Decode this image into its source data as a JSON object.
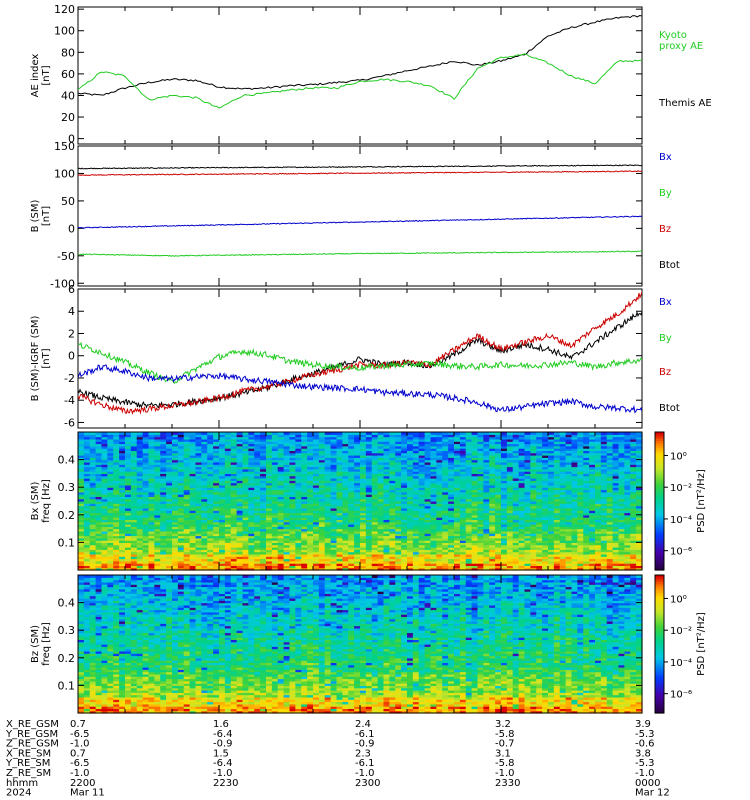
{
  "panels": [
    {
      "id": "ae",
      "ylabel_lines": [
        "AE index",
        "[nT]"
      ],
      "ylim": [
        -5,
        122
      ],
      "ticks": [
        0,
        20,
        40,
        60,
        80,
        100,
        120
      ],
      "tick_labels": [
        "0",
        "20",
        "40",
        "60",
        "80",
        "100",
        "120"
      ],
      "legend": [
        {
          "label": "Kyoto",
          "color": "#22cc22"
        },
        {
          "label": "proxy AE",
          "color": "#22cc22"
        },
        {
          "label": "Themis AE",
          "color": "#000000"
        }
      ]
    },
    {
      "id": "b",
      "ylabel_lines": [
        "B (SM)",
        "[nT]"
      ],
      "ylim": [
        -105,
        150
      ],
      "ticks": [
        -100,
        -50,
        0,
        50,
        100,
        150
      ],
      "tick_labels": [
        "-100",
        "-50",
        "0",
        "50",
        "100",
        "150"
      ],
      "legend": [
        {
          "label": "Bx",
          "color": "#0000cc"
        },
        {
          "label": "By",
          "color": "#22cc22"
        },
        {
          "label": "Bz",
          "color": "#cc0000"
        },
        {
          "label": "Btot",
          "color": "#000000"
        }
      ]
    },
    {
      "id": "dib",
      "ylabel_lines": [
        "B (SM)-IGRF (SM)",
        "[nT]"
      ],
      "ylim": [
        -6.5,
        6
      ],
      "ticks": [
        -6,
        -4,
        -2,
        0,
        2,
        4,
        6
      ],
      "tick_labels": [
        "-6",
        "-4",
        "-2",
        "0",
        "2",
        "4",
        "6"
      ],
      "legend": [
        {
          "label": "Bx",
          "color": "#0000cc"
        },
        {
          "label": "By",
          "color": "#22cc22"
        },
        {
          "label": "Bz",
          "color": "#cc0000"
        },
        {
          "label": "Btot",
          "color": "#000000"
        }
      ]
    },
    {
      "id": "bxspec",
      "ylabel_lines": [
        "Bx (SM)",
        "freq [Hz]"
      ],
      "ylim": [
        0,
        0.5
      ],
      "ticks": [
        0.1,
        0.2,
        0.3,
        0.4
      ],
      "tick_labels": [
        "0.1",
        "0.2",
        "0.3",
        "0.4"
      ],
      "colorbar_label": "PSD [nT²/Hz]",
      "colorbar_ticks": [
        "10⁰",
        "10⁻²",
        "10⁻⁴",
        "10⁻⁶"
      ]
    },
    {
      "id": "bzspec",
      "ylabel_lines": [
        "Bz (SM)",
        "freq [Hz]"
      ],
      "ylim": [
        0,
        0.5
      ],
      "ticks": [
        0.1,
        0.2,
        0.3,
        0.4
      ],
      "tick_labels": [
        "0.1",
        "0.2",
        "0.3",
        "0.4"
      ],
      "colorbar_label": "PSD [nT²/Hz]",
      "colorbar_ticks": [
        "10⁰",
        "10⁻²",
        "10⁻⁴",
        "10⁻⁶"
      ]
    }
  ],
  "chart_data": [
    {
      "type": "line",
      "xlim_minutes": [
        0,
        120
      ],
      "series": [
        {
          "name": "Themis AE",
          "color": "#000000",
          "x": [
            0,
            5,
            10,
            15,
            20,
            25,
            30,
            35,
            40,
            45,
            50,
            55,
            60,
            65,
            70,
            75,
            80,
            85,
            90,
            95,
            100,
            105,
            110,
            115,
            120
          ],
          "y": [
            42,
            40,
            47,
            52,
            55,
            54,
            48,
            46,
            47,
            49,
            50,
            52,
            54,
            58,
            63,
            67,
            72,
            68,
            72,
            78,
            95,
            103,
            108,
            112,
            114
          ]
        },
        {
          "name": "Kyoto proxy AE",
          "color": "#22cc22",
          "x": [
            0,
            5,
            10,
            15,
            20,
            25,
            30,
            35,
            40,
            45,
            50,
            55,
            60,
            65,
            70,
            75,
            80,
            85,
            90,
            95,
            100,
            105,
            110,
            115,
            120
          ],
          "y": [
            45,
            62,
            58,
            36,
            40,
            38,
            28,
            40,
            42,
            45,
            47,
            47,
            53,
            55,
            53,
            49,
            37,
            65,
            75,
            78,
            70,
            58,
            51,
            72,
            72
          ]
        }
      ]
    },
    {
      "type": "line",
      "xlim_minutes": [
        0,
        120
      ],
      "series": [
        {
          "name": "Btot",
          "color": "#000000",
          "x": [
            0,
            120
          ],
          "y": [
            109,
            115
          ]
        },
        {
          "name": "Bz",
          "color": "#cc0000",
          "x": [
            0,
            120
          ],
          "y": [
            97,
            104
          ]
        },
        {
          "name": "Bx",
          "color": "#0000cc",
          "x": [
            0,
            120
          ],
          "y": [
            1,
            22
          ]
        },
        {
          "name": "By",
          "color": "#22cc22",
          "x": [
            0,
            20,
            60,
            120
          ],
          "y": [
            -47,
            -50,
            -46,
            -42
          ]
        }
      ]
    },
    {
      "type": "line",
      "xlim_minutes": [
        0,
        120
      ],
      "series": [
        {
          "name": "Btot",
          "color": "#000000",
          "x": [
            0,
            5,
            10,
            15,
            20,
            25,
            30,
            35,
            40,
            45,
            50,
            55,
            60,
            65,
            70,
            75,
            80,
            85,
            90,
            95,
            100,
            105,
            110,
            115,
            120
          ],
          "y": [
            -3.2,
            -3.8,
            -4.2,
            -4.5,
            -4.4,
            -4.1,
            -3.8,
            -3.4,
            -2.9,
            -2.2,
            -1.6,
            -1.0,
            -0.3,
            -0.8,
            -0.6,
            -0.9,
            0.1,
            1.4,
            0.4,
            1.0,
            0.6,
            -0.2,
            1.2,
            2.6,
            4.0
          ]
        },
        {
          "name": "Bz",
          "color": "#cc0000",
          "x": [
            0,
            5,
            10,
            15,
            20,
            25,
            30,
            35,
            40,
            45,
            50,
            55,
            60,
            65,
            70,
            75,
            80,
            85,
            90,
            95,
            100,
            105,
            110,
            115,
            120
          ],
          "y": [
            -3.6,
            -4.4,
            -5.0,
            -4.8,
            -4.5,
            -4.2,
            -3.8,
            -3.2,
            -2.8,
            -2.3,
            -1.7,
            -1.3,
            -0.8,
            -0.9,
            -0.6,
            -0.8,
            0.5,
            1.8,
            0.6,
            1.2,
            1.8,
            0.9,
            2.5,
            3.8,
            5.6
          ]
        },
        {
          "name": "By",
          "color": "#22cc22",
          "x": [
            0,
            5,
            10,
            15,
            20,
            25,
            30,
            35,
            40,
            45,
            50,
            55,
            60,
            65,
            70,
            75,
            80,
            85,
            90,
            95,
            100,
            105,
            110,
            115,
            120
          ],
          "y": [
            1.0,
            0.3,
            -0.6,
            -1.5,
            -2.4,
            -1.2,
            -0.1,
            0.4,
            0.1,
            -0.5,
            -0.8,
            -1.0,
            -1.1,
            -0.9,
            -0.8,
            -0.7,
            -0.9,
            -1.0,
            -0.8,
            -0.9,
            -0.8,
            -0.6,
            -1.0,
            -0.6,
            -0.4
          ]
        },
        {
          "name": "Bx",
          "color": "#0000cc",
          "x": [
            0,
            5,
            10,
            15,
            20,
            25,
            30,
            35,
            40,
            45,
            50,
            55,
            60,
            65,
            70,
            75,
            80,
            85,
            90,
            95,
            100,
            105,
            110,
            115,
            120
          ],
          "y": [
            -1.8,
            -1.0,
            -1.4,
            -2.0,
            -2.1,
            -1.9,
            -1.8,
            -2.1,
            -2.3,
            -2.6,
            -2.8,
            -2.9,
            -3.0,
            -3.3,
            -3.4,
            -3.5,
            -3.8,
            -4.2,
            -4.9,
            -4.6,
            -4.3,
            -4.1,
            -4.6,
            -4.7,
            -4.9
          ]
        }
      ]
    },
    {
      "type": "heatmap",
      "description_values": "spectral power density, high at low frequency, lower at higher frequency"
    },
    {
      "type": "heatmap",
      "description_values": "spectral power density, high at low frequency, lower at higher frequency"
    }
  ],
  "ephemeris": {
    "rows": [
      {
        "label": "X_RE_GSM",
        "values": [
          "0.7",
          "1.6",
          "2.4",
          "3.2",
          "3.9"
        ]
      },
      {
        "label": "Y_RE_GSM",
        "values": [
          "-6.5",
          "-6.4",
          "-6.1",
          "-5.8",
          "-5.3"
        ]
      },
      {
        "label": "Z_RE_GSM",
        "values": [
          "-1.0",
          "-0.9",
          "-0.9",
          "-0.7",
          "-0.6"
        ]
      },
      {
        "label": "X_RE_SM",
        "values": [
          "0.7",
          "1.5",
          "2.3",
          "3.1",
          "3.8"
        ]
      },
      {
        "label": "Y_RE_SM",
        "values": [
          "-6.5",
          "-6.4",
          "-6.1",
          "-5.8",
          "-5.3"
        ]
      },
      {
        "label": "Z_RE_SM",
        "values": [
          "-1.0",
          "-1.0",
          "-1.0",
          "-1.0",
          "-1.0"
        ]
      },
      {
        "label": "hhmm",
        "values": [
          "2200",
          "2230",
          "2300",
          "2330",
          "0000"
        ]
      },
      {
        "label": "2024",
        "values": [
          "Mar 11",
          "",
          "",
          "",
          "Mar 12"
        ]
      }
    ]
  }
}
